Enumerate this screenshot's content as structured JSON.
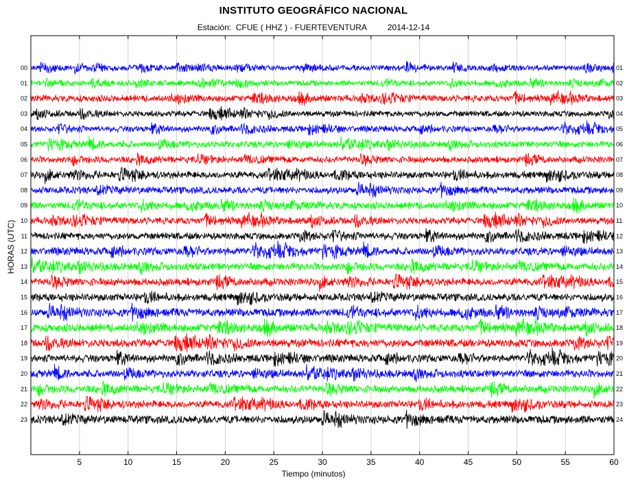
{
  "chart_data": {
    "type": "line",
    "title": "INSTITUTO GEOGRÁFICO NACIONAL",
    "subtitle": {
      "station": "Estación:  CFUE ( HHZ ) - FUERTEVENTURA",
      "date": "2014-12-14"
    },
    "xlabel": "Tiempo (minutos)",
    "ylabel": "HORAS (UTC)",
    "xlim": [
      0,
      60
    ],
    "x_ticks": [
      "5",
      "10",
      "15",
      "20",
      "25",
      "30",
      "35",
      "40",
      "45",
      "50",
      "55",
      "60"
    ],
    "x_tick_values": [
      5,
      10,
      15,
      20,
      25,
      30,
      35,
      40,
      45,
      50,
      55,
      60
    ],
    "grid": true,
    "series": [
      {
        "left_label": "00",
        "right_label": "01",
        "color": "#0000ff",
        "amplitude": 0.5
      },
      {
        "left_label": "01",
        "right_label": "02",
        "color": "#00ff00",
        "amplitude": 0.5
      },
      {
        "left_label": "02",
        "right_label": "03",
        "color": "#ff0000",
        "amplitude": 0.6
      },
      {
        "left_label": "03",
        "right_label": "04",
        "color": "#000000",
        "amplitude": 0.55
      },
      {
        "left_label": "04",
        "right_label": "05",
        "color": "#0000ff",
        "amplitude": 0.55
      },
      {
        "left_label": "05",
        "right_label": "06",
        "color": "#00ff00",
        "amplitude": 0.6
      },
      {
        "left_label": "06",
        "right_label": "07",
        "color": "#ff0000",
        "amplitude": 0.6
      },
      {
        "left_label": "07",
        "right_label": "08",
        "color": "#000000",
        "amplitude": 0.65
      },
      {
        "left_label": "08",
        "right_label": "09",
        "color": "#0000ff",
        "amplitude": 0.65
      },
      {
        "left_label": "09",
        "right_label": "10",
        "color": "#00ff00",
        "amplitude": 0.65
      },
      {
        "left_label": "10",
        "right_label": "11",
        "color": "#ff0000",
        "amplitude": 0.65
      },
      {
        "left_label": "11",
        "right_label": "12",
        "color": "#000000",
        "amplitude": 0.65
      },
      {
        "left_label": "12",
        "right_label": "13",
        "color": "#0000ff",
        "amplitude": 0.7
      },
      {
        "left_label": "13",
        "right_label": "14",
        "color": "#00ff00",
        "amplitude": 0.7
      },
      {
        "left_label": "14",
        "right_label": "15",
        "color": "#ff0000",
        "amplitude": 0.7
      },
      {
        "left_label": "15",
        "right_label": "16",
        "color": "#000000",
        "amplitude": 0.7
      },
      {
        "left_label": "16",
        "right_label": "17",
        "color": "#0000ff",
        "amplitude": 0.75
      },
      {
        "left_label": "17",
        "right_label": "18",
        "color": "#00ff00",
        "amplitude": 0.75
      },
      {
        "left_label": "18",
        "right_label": "19",
        "color": "#ff0000",
        "amplitude": 0.75
      },
      {
        "left_label": "19",
        "right_label": "20",
        "color": "#000000",
        "amplitude": 0.7
      },
      {
        "left_label": "20",
        "right_label": "21",
        "color": "#0000ff",
        "amplitude": 0.7
      },
      {
        "left_label": "21",
        "right_label": "22",
        "color": "#00ff00",
        "amplitude": 0.7
      },
      {
        "left_label": "22",
        "right_label": "23",
        "color": "#ff0000",
        "amplitude": 0.7
      },
      {
        "left_label": "23",
        "right_label": "24",
        "color": "#000000",
        "amplitude": 0.75
      }
    ]
  }
}
